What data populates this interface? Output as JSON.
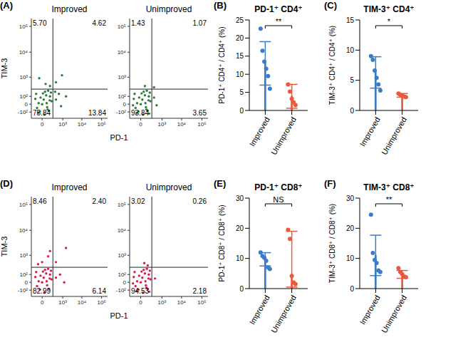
{
  "chart_data": [
    {
      "panel": "(A)",
      "type": "scatter",
      "x_label": "PD-1",
      "y_label": "TIM-3",
      "color": "#2f7d3b",
      "log": true,
      "xlim": [
        -250,
        200000
      ],
      "ylim": [
        -250,
        200000
      ],
      "xticks": [
        0,
        {
          "value": 1000,
          "label": "10³"
        },
        {
          "value": 10000,
          "label": "10⁴"
        },
        {
          "value": 100000,
          "label": "10⁵"
        }
      ],
      "yticks": [
        {
          "value": -100,
          "label": "-10²"
        },
        0,
        {
          "value": 100,
          "label": "10²"
        },
        {
          "value": 1000,
          "label": "10³"
        },
        {
          "value": 10000,
          "label": "10⁴"
        },
        {
          "value": 100000,
          "label": "10⁵"
        }
      ],
      "gate": {
        "x": 250,
        "y": 280
      },
      "plots": [
        {
          "title": "Improved",
          "quadrants": {
            "values": [
              5.7,
              4.62,
              75.84,
              13.84
            ],
            "value_labels": [
              "5.70",
              "4.62",
              "75.84",
              "13.84"
            ]
          },
          "x": [
            20,
            -50,
            80,
            150,
            -100,
            40,
            120,
            0,
            -30,
            200,
            60,
            -80,
            100,
            180,
            -20,
            30,
            140,
            -120,
            70,
            10,
            -60,
            90,
            400,
            800,
            1500,
            350,
            600,
            50,
            -40,
            150,
            400,
            900
          ],
          "y": [
            50,
            10,
            -30,
            100,
            150,
            200,
            -80,
            0,
            -90,
            30,
            120,
            -40,
            230,
            180,
            80,
            -150,
            40,
            60,
            10,
            160,
            -120,
            -60,
            50,
            -20,
            100,
            200,
            150,
            500,
            900,
            400,
            600,
            1200
          ]
        },
        {
          "title": "Unimproved",
          "quadrants": {
            "values": [
              1.43,
              1.07,
              93.84,
              3.65
            ],
            "value_labels": [
              "1.43",
              "1.07",
              "93.84",
              "3.65"
            ]
          },
          "x": [
            20,
            -50,
            80,
            150,
            -100,
            40,
            120,
            0,
            -30,
            200,
            60,
            -80,
            100,
            180,
            -20,
            30,
            140,
            -120,
            70,
            10,
            -60,
            90,
            -140,
            160,
            350,
            500,
            60,
            350
          ],
          "y": [
            50,
            10,
            -30,
            100,
            150,
            200,
            -80,
            0,
            -90,
            30,
            120,
            -40,
            230,
            180,
            80,
            -150,
            40,
            60,
            10,
            160,
            -120,
            -60,
            -10,
            -130,
            80,
            -10,
            400,
            350
          ]
        }
      ]
    },
    {
      "panel": "(B)",
      "type": "bar",
      "title": "PD-1⁺ CD4⁺",
      "y_label": "PD-1⁺ CD4⁺ / CD4⁺ (%)",
      "categories": [
        "Improved",
        "Unimproved"
      ],
      "values": [
        13,
        3.9
      ],
      "error_lower": [
        6,
        3.3
      ],
      "error_upper": [
        6,
        3.3
      ],
      "points": [
        [
          22.6,
          16.5,
          13.5,
          11.5,
          9.5,
          6
        ],
        [
          7.2,
          5.2,
          3.2,
          2.2,
          1.5
        ]
      ],
      "colors": [
        "#3a7cc6",
        "#e9593b"
      ],
      "ylim": [
        0,
        25
      ],
      "yticks": [
        0,
        5,
        10,
        15,
        20,
        25
      ],
      "significance": "**"
    },
    {
      "panel": "(C)",
      "type": "bar",
      "title": "TIM-3⁺ CD4⁺",
      "y_label": "TIM-3⁺ CD4⁺ / CD4⁺ (%)",
      "categories": [
        "Improved",
        "Unimproved"
      ],
      "values": [
        6.3,
        2.5
      ],
      "error_lower": [
        2.6,
        0.3
      ],
      "error_upper": [
        2.6,
        0.3
      ],
      "points": [
        [
          9.0,
          8.4,
          6.6,
          5.4,
          4.3,
          3.3
        ],
        [
          2.8,
          2.6,
          2.5,
          2.3,
          2.2
        ]
      ],
      "colors": [
        "#3a7cc6",
        "#e9593b"
      ],
      "ylim": [
        0,
        15
      ],
      "yticks": [
        0,
        5,
        10,
        15
      ],
      "significance": "*"
    },
    {
      "panel": "(D)",
      "type": "scatter",
      "x_label": "PD-1",
      "y_label": "TIM-3",
      "color": "#d81f4e",
      "log": true,
      "xlim": [
        -250,
        200000
      ],
      "ylim": [
        -250,
        200000
      ],
      "xticks": [
        0,
        {
          "value": 1000,
          "label": "10³"
        },
        {
          "value": 10000,
          "label": "10⁴"
        },
        {
          "value": 100000,
          "label": "10⁵"
        }
      ],
      "yticks": [
        {
          "value": -100,
          "label": "-10²"
        },
        0,
        {
          "value": 100,
          "label": "10²"
        },
        {
          "value": 1000,
          "label": "10³"
        },
        {
          "value": 10000,
          "label": "10⁴"
        },
        {
          "value": 100000,
          "label": "10⁵"
        }
      ],
      "gate": {
        "x": 250,
        "y": 280
      },
      "plots": [
        {
          "title": "Improved",
          "quadrants": {
            "values": [
              8.46,
              2.4,
              82.99,
              6.14
            ],
            "value_labels": [
              "8.46",
              "2.40",
              "82.99",
              "6.14"
            ]
          },
          "x": [
            20,
            -50,
            80,
            150,
            -100,
            40,
            120,
            0,
            -30,
            200,
            60,
            -80,
            100,
            180,
            -20,
            30,
            140,
            -120,
            70,
            10,
            400,
            700,
            1200,
            0,
            100,
            -60,
            150,
            400,
            1500
          ],
          "y": [
            50,
            10,
            -30,
            100,
            150,
            200,
            -80,
            0,
            -90,
            30,
            120,
            -40,
            230,
            180,
            80,
            -150,
            40,
            60,
            10,
            160,
            50,
            100,
            0,
            500,
            900,
            400,
            1500,
            500,
            2000
          ]
        },
        {
          "title": "Unimproved",
          "quadrants": {
            "values": [
              3.02,
              0.26,
              94.53,
              2.18
            ],
            "value_labels": [
              "3.02",
              "0.26",
              "94.53",
              "2.18"
            ]
          },
          "x": [
            20,
            -50,
            80,
            150,
            -100,
            40,
            120,
            0,
            -30,
            200,
            60,
            -80,
            100,
            180,
            -20,
            30,
            140,
            -120,
            70,
            10,
            -60,
            90,
            -140,
            160,
            400,
            50,
            120
          ],
          "y": [
            50,
            10,
            -30,
            100,
            150,
            200,
            -80,
            0,
            -90,
            30,
            120,
            -40,
            230,
            180,
            80,
            -150,
            40,
            60,
            10,
            160,
            -120,
            -60,
            -10,
            -130,
            40,
            450,
            350
          ]
        }
      ]
    },
    {
      "panel": "(E)",
      "type": "bar",
      "title": "PD-1⁺ CD8⁺",
      "y_label": "PD-1⁺ CD8⁺ / CD8⁺ (%)",
      "categories": [
        "Improved",
        "Unimproved"
      ],
      "values": [
        9.7,
        4.2
      ],
      "error_lower": [
        2.2,
        3.7
      ],
      "error_upper": [
        2.2,
        14.8
      ],
      "points": [
        [
          12.0,
          10.8,
          10.2,
          9.2,
          7.0,
          6.5
        ],
        [
          19.5,
          16.5,
          4.2,
          2.0,
          1.5
        ]
      ],
      "colors": [
        "#3a7cc6",
        "#e9593b"
      ],
      "ylim": [
        0,
        30
      ],
      "yticks": [
        0,
        10,
        20,
        30
      ],
      "significance": "NS"
    },
    {
      "panel": "(F)",
      "type": "bar",
      "title": "TIM-3⁺ CD8⁺",
      "y_label": "TIM-3⁺ CD8⁺ / CD8⁺ (%)",
      "categories": [
        "Improved",
        "Unimproved"
      ],
      "values": [
        11,
        4.7
      ],
      "error_lower": [
        6.7,
        1.3
      ],
      "error_upper": [
        6.7,
        1.3
      ],
      "points": [
        [
          24.5,
          11.8,
          9.5,
          8.5,
          6,
          5.5
        ],
        [
          6.8,
          5.5,
          4.8,
          4.0,
          3.8
        ]
      ],
      "colors": [
        "#3a7cc6",
        "#e9593b"
      ],
      "ylim": [
        0,
        30
      ],
      "yticks": [
        0,
        10,
        20,
        30
      ],
      "significance": "**"
    }
  ]
}
